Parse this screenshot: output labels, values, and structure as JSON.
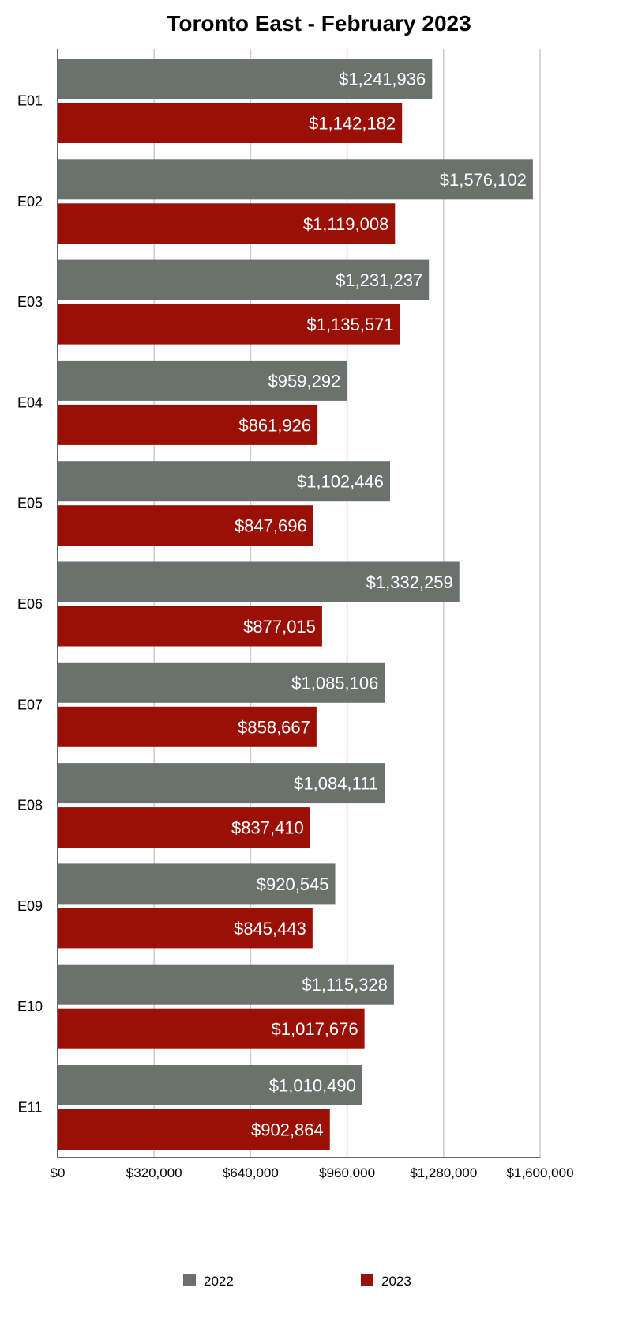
{
  "chart_data": {
    "type": "bar",
    "orientation": "horizontal",
    "title": "Toronto East - February 2023",
    "categories": [
      "E01",
      "E02",
      "E03",
      "E04",
      "E05",
      "E06",
      "E07",
      "E08",
      "E09",
      "E10",
      "E11"
    ],
    "series": [
      {
        "name": "2022",
        "color": "#6b726e",
        "values": [
          1241936,
          1576102,
          1231237,
          959292,
          1102446,
          1332259,
          1085106,
          1084111,
          920545,
          1115328,
          1010490
        ],
        "labels": [
          "$1,241,936",
          "$1,576,102",
          "$1,231,237",
          "$959,292",
          "$1,102,446",
          "$1,332,259",
          "$1,085,106",
          "$1,084,111",
          "$920,545",
          "$1,115,328",
          "$1,010,490"
        ]
      },
      {
        "name": "2023",
        "color": "#9a1006",
        "values": [
          1142182,
          1119008,
          1135571,
          861926,
          847696,
          877015,
          858667,
          837410,
          845443,
          1017676,
          902864
        ],
        "labels": [
          "$1,142,182",
          "$1,119,008",
          "$1,135,571",
          "$861,926",
          "$847,696",
          "$877,015",
          "$858,667",
          "$837,410",
          "$845,443",
          "$1,017,676",
          "$902,864"
        ]
      }
    ],
    "xlim": [
      0,
      1600000
    ],
    "xticks": [
      0,
      320000,
      640000,
      960000,
      1280000,
      1600000
    ],
    "xtick_labels": [
      "$0",
      "$320,000",
      "$640,000",
      "$960,000",
      "$1,280,000",
      "$1,600,000"
    ],
    "xlabel": "",
    "ylabel": "",
    "grid": true,
    "legend_position": "bottom"
  }
}
